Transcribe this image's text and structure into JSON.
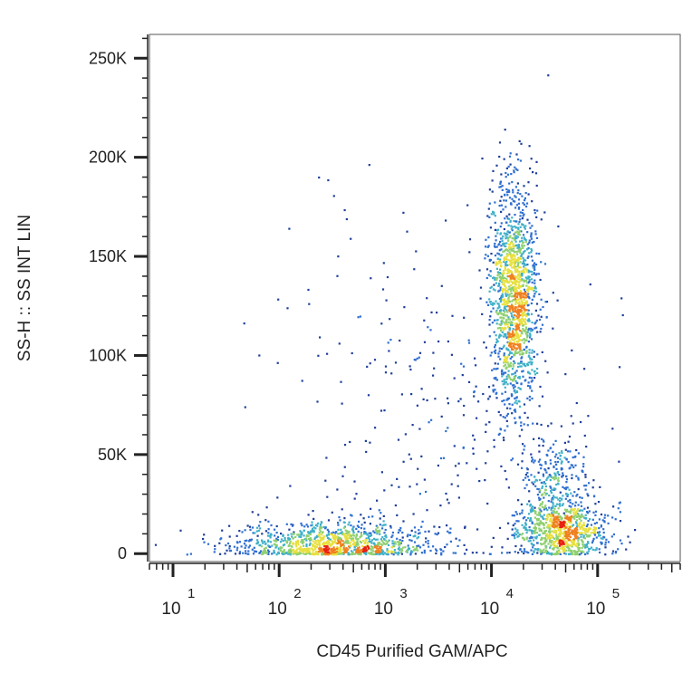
{
  "chart_data": {
    "type": "scatter",
    "style": "flow-cytometry density dot plot (pseudocolor)",
    "xlabel": "CD45 Purified GAM/APC",
    "ylabel": "SS-H :: SS INT LIN",
    "x_scale": "log",
    "y_scale": "linear",
    "xlim": [
      6,
      600000
    ],
    "ylim": [
      -4000,
      262000
    ],
    "x_ticks": [
      {
        "value": 10,
        "base": "10",
        "exp": "1"
      },
      {
        "value": 100,
        "base": "10",
        "exp": "2"
      },
      {
        "value": 1000,
        "base": "10",
        "exp": "3"
      },
      {
        "value": 10000,
        "base": "10",
        "exp": "4"
      },
      {
        "value": 100000,
        "base": "10",
        "exp": "5"
      }
    ],
    "y_ticks": [
      {
        "value": 0,
        "label": "0"
      },
      {
        "value": 50000,
        "label": "50K"
      },
      {
        "value": 100000,
        "label": "100K"
      },
      {
        "value": 150000,
        "label": "150K"
      },
      {
        "value": 200000,
        "label": "200K"
      },
      {
        "value": 250000,
        "label": "250K"
      }
    ],
    "grid": false,
    "legend": "none",
    "density_colors": [
      "#1f3f9a",
      "#2f6fd0",
      "#3fb0c8",
      "#8fd070",
      "#e8e040",
      "#f08020",
      "#e82010"
    ],
    "populations": [
      {
        "x_center": 300,
        "y_center": 5000,
        "x_log_spread": 0.45,
        "y_spread": 6000,
        "count": 1100
      },
      {
        "x_center": 16000,
        "y_center": 130000,
        "x_log_spread": 0.11,
        "y_spread": 28000,
        "count": 1500
      },
      {
        "x_center": 45000,
        "y_center": 12000,
        "x_log_spread": 0.22,
        "y_spread": 7000,
        "count": 850
      },
      {
        "x_center": 38000,
        "y_center": 38000,
        "x_log_spread": 0.16,
        "y_spread": 11000,
        "count": 260
      },
      {
        "x_center": 3000,
        "y_center": 60000,
        "x_log_spread": 0.75,
        "y_spread": 55000,
        "count": 320
      }
    ]
  }
}
